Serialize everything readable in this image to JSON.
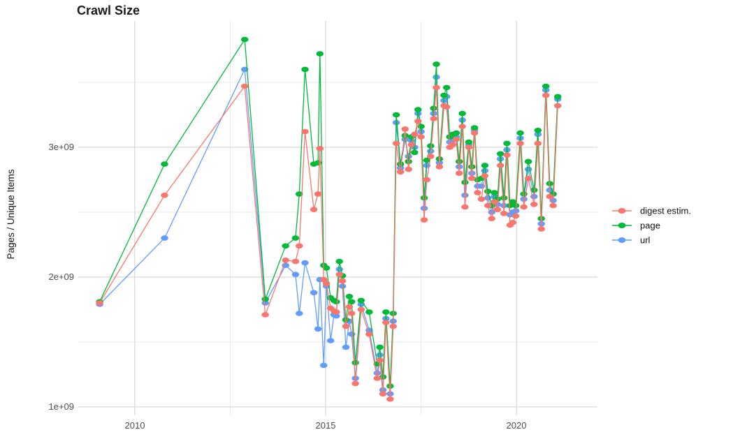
{
  "chart_data": {
    "type": "line",
    "title": "Crawl Size",
    "xlabel": "",
    "ylabel": "Pages / Unique Items",
    "y_unit": "1e+09 (billions)",
    "grid": "on",
    "legend_position": "right-center",
    "background": "#ffffff",
    "gridline_major_color": "#dcdcdc",
    "gridline_minor_color": "#e9e9e9",
    "x_domain": [
      2008.52,
      2022.12
    ],
    "y_domain": [
      0.935,
      3.973
    ],
    "x_ticks": [
      {
        "value": 2010,
        "label": "2010"
      },
      {
        "value": 2015,
        "label": "2015"
      },
      {
        "value": 2020,
        "label": "2020"
      }
    ],
    "y_ticks": [
      {
        "value": 1,
        "label": "1e+09"
      },
      {
        "value": 2,
        "label": "2e+09"
      },
      {
        "value": 3,
        "label": "3e+09"
      }
    ],
    "x_minor_gridlines": [
      2012.5,
      2017.5
    ],
    "y_minor_gridlines": [
      1.5,
      2.5,
      3.5
    ],
    "x": [
      2009.08,
      2010.78,
      2012.88,
      2013.42,
      2013.95,
      2014.21,
      2014.31,
      2014.46,
      2014.69,
      2014.8,
      2014.85,
      2014.95,
      2015.02,
      2015.13,
      2015.22,
      2015.28,
      2015.36,
      2015.44,
      2015.53,
      2015.62,
      2015.68,
      2015.78,
      2015.93,
      2016.14,
      2016.35,
      2016.42,
      2016.5,
      2016.58,
      2016.69,
      2016.77,
      2016.85,
      2016.96,
      2017.08,
      2017.17,
      2017.25,
      2017.33,
      2017.42,
      2017.5,
      2017.58,
      2017.65,
      2017.75,
      2017.83,
      2017.9,
      2017.98,
      2018.1,
      2018.17,
      2018.25,
      2018.33,
      2018.42,
      2018.5,
      2018.58,
      2018.65,
      2018.75,
      2018.83,
      2018.9,
      2018.98,
      2019.08,
      2019.17,
      2019.25,
      2019.35,
      2019.42,
      2019.5,
      2019.58,
      2019.67,
      2019.75,
      2019.83,
      2019.9,
      2019.98,
      2020.1,
      2020.19,
      2020.31,
      2020.46,
      2020.56,
      2020.65,
      2020.77,
      2020.87,
      2020.96,
      2021.08
    ],
    "series": [
      {
        "name": "digest estim.",
        "color": "#F8766D",
        "values": [
          1.8,
          2.63,
          3.47,
          1.71,
          2.13,
          2.12,
          2.24,
          3.12,
          2.52,
          2.64,
          2.99,
          1.98,
          1.95,
          1.76,
          1.74,
          1.73,
          2.02,
          1.97,
          1.62,
          1.77,
          1.72,
          1.18,
          1.75,
          1.56,
          1.22,
          1.36,
          1.1,
          1.65,
          1.06,
          1.62,
          3.03,
          2.81,
          3.14,
          2.83,
          3.02,
          3.1,
          3.2,
          3.08,
          2.44,
          2.75,
          2.93,
          3.22,
          3.46,
          2.85,
          3.32,
          3.31,
          3.0,
          3.02,
          3.06,
          2.8,
          3.16,
          2.54,
          3.0,
          2.76,
          3.11,
          2.65,
          2.6,
          2.78,
          2.55,
          2.45,
          2.58,
          2.52,
          2.86,
          2.49,
          2.94,
          2.4,
          2.42,
          2.47,
          3.03,
          2.54,
          2.76,
          2.56,
          3.03,
          2.37,
          3.4,
          2.62,
          2.55,
          3.32
        ]
      },
      {
        "name": "page",
        "color": "#00BA38",
        "values": [
          1.81,
          2.87,
          3.83,
          1.83,
          2.24,
          2.3,
          2.64,
          3.6,
          2.87,
          2.88,
          3.72,
          2.09,
          2.07,
          1.84,
          1.82,
          1.81,
          2.12,
          2.01,
          1.67,
          1.85,
          1.81,
          1.34,
          1.82,
          1.73,
          1.33,
          1.46,
          1.23,
          1.73,
          1.16,
          1.72,
          3.25,
          2.87,
          3.09,
          2.89,
          3.08,
          2.96,
          3.29,
          3.16,
          2.61,
          2.9,
          3.01,
          3.3,
          3.64,
          2.91,
          3.4,
          3.46,
          3.08,
          3.1,
          3.11,
          2.89,
          3.26,
          2.73,
          3.04,
          2.85,
          3.15,
          2.75,
          2.76,
          2.86,
          2.66,
          2.55,
          2.65,
          2.6,
          2.95,
          2.61,
          3.03,
          2.55,
          2.58,
          2.55,
          3.11,
          2.64,
          2.89,
          2.67,
          3.13,
          2.45,
          3.47,
          2.72,
          2.64,
          3.39
        ]
      },
      {
        "name": "url",
        "color": "#619CFF",
        "values": [
          1.79,
          2.3,
          3.6,
          1.8,
          2.09,
          2.02,
          1.72,
          2.11,
          1.88,
          1.6,
          1.98,
          1.32,
          1.93,
          1.51,
          1.71,
          1.7,
          2.06,
          1.93,
          1.46,
          1.66,
          1.56,
          1.22,
          1.79,
          1.59,
          1.26,
          1.4,
          1.13,
          1.68,
          1.1,
          1.66,
          3.19,
          2.84,
          3.06,
          2.93,
          3.05,
          3.0,
          3.26,
          3.12,
          2.53,
          2.86,
          2.97,
          3.26,
          3.54,
          2.88,
          3.36,
          3.39,
          3.04,
          3.06,
          3.08,
          2.85,
          3.21,
          2.63,
          3.02,
          2.8,
          3.13,
          2.7,
          2.7,
          2.82,
          2.61,
          2.5,
          2.62,
          2.56,
          2.91,
          2.55,
          2.98,
          2.48,
          2.5,
          2.51,
          3.07,
          2.6,
          2.83,
          2.62,
          3.1,
          2.41,
          3.44,
          2.67,
          2.59,
          3.37
        ]
      }
    ]
  },
  "legend": {
    "items": [
      {
        "label": "digest estim.",
        "color": "#F8766D"
      },
      {
        "label": "page",
        "color": "#00BA38"
      },
      {
        "label": "url",
        "color": "#619CFF"
      }
    ]
  }
}
